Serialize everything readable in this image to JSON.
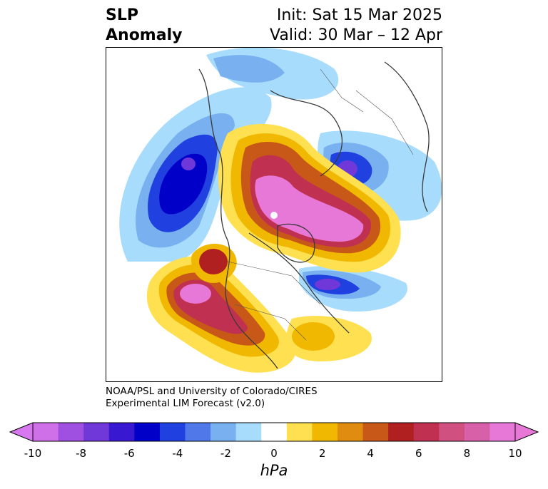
{
  "title": {
    "line1": "SLP",
    "line2": "Anomaly",
    "init": "Init: Sat 15 Mar 2025",
    "valid": "Valid: 30 Mar – 12 Apr"
  },
  "credit": {
    "line1": "NOAA/PSL and University of Colorado/CIRES",
    "line2": "Experimental LIM Forecast (v2.0)"
  },
  "colorbar": {
    "unit": "hPa",
    "ticks": [
      "-10",
      "-8",
      "-6",
      "-4",
      "-2",
      "0",
      "2",
      "4",
      "6",
      "8",
      "10"
    ],
    "colors": [
      "#d070e8",
      "#a050e0",
      "#7038d8",
      "#3818d0",
      "#0000c8",
      "#2040e0",
      "#5078e8",
      "#78b0f0",
      "#a8dcfc",
      "#ffffff",
      "#ffe050",
      "#f0b800",
      "#e08c10",
      "#c85818",
      "#b02020",
      "#c03050",
      "#d05080",
      "#d860a8",
      "#e878d8"
    ],
    "under_color": "#d878f0",
    "over_color": "#e878d8"
  }
}
